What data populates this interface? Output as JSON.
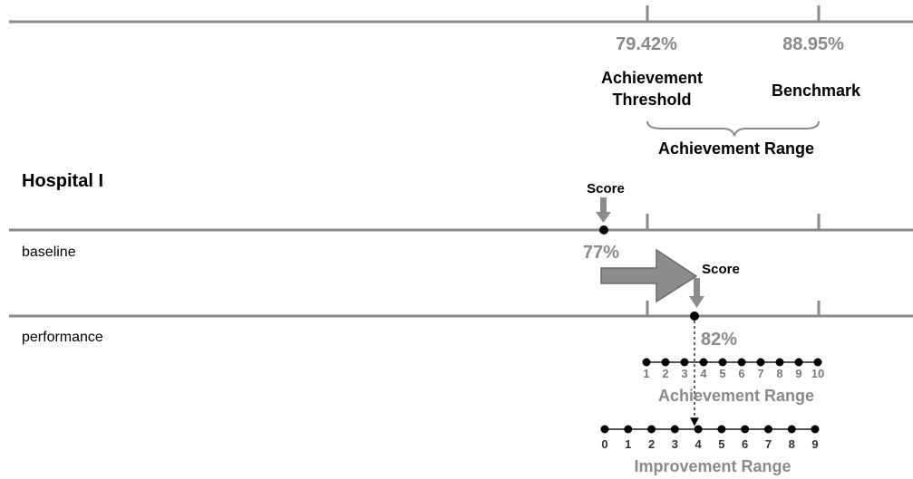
{
  "top": {
    "threshold_pct": "79.42%",
    "benchmark_pct": "88.95%",
    "threshold_label_line1": "Achievement",
    "threshold_label_line2": "Threshold",
    "benchmark_label": "Benchmark",
    "range_label": "Achievement  Range"
  },
  "hospital": {
    "name": "Hospital I",
    "score_label_1": "Score",
    "score_label_2": "Score",
    "baseline_label": "baseline",
    "baseline_pct": "77%",
    "performance_label": "performance",
    "performance_pct": "82%"
  },
  "achievement_scale": {
    "title": "Achievement  Range",
    "ticks": [
      "1",
      "2",
      "3",
      "4",
      "5",
      "6",
      "7",
      "8",
      "9",
      "10"
    ],
    "score_position": 3
  },
  "improvement_scale": {
    "title": "Improvement Range",
    "ticks": [
      "0",
      "1",
      "2",
      "3",
      "4",
      "5",
      "6",
      "7",
      "8",
      "9"
    ],
    "score_position": 4
  },
  "colors": {
    "line": "#8a8a8a",
    "arrow_fill": "#8c8c8c",
    "dot": "#000000",
    "muted_text": "#8a8a8a"
  }
}
